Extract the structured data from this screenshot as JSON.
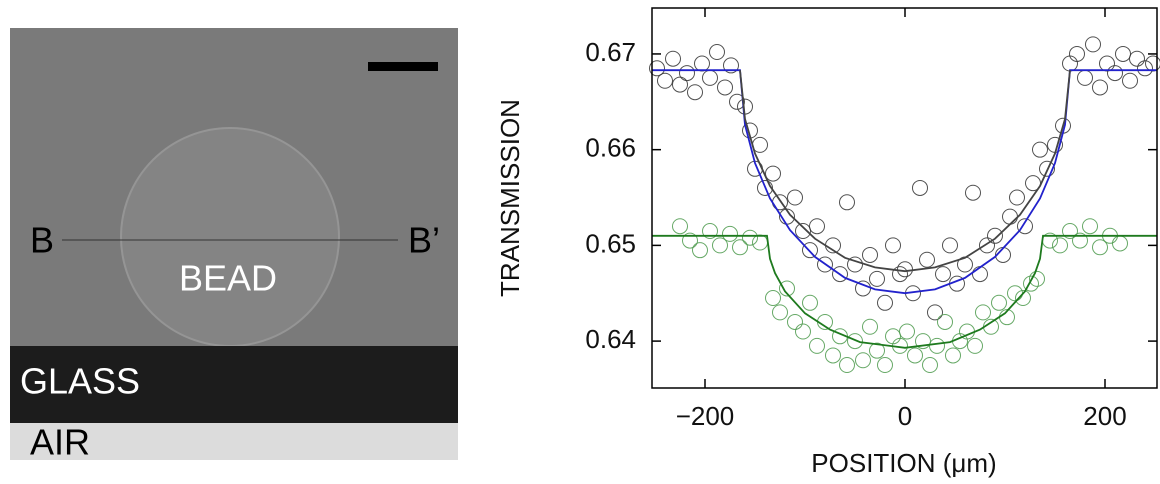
{
  "micrograph": {
    "left_marker": "B",
    "right_marker": "B’",
    "bead": "BEAD",
    "glass": "GLASS",
    "air": "AIR"
  },
  "chart_data": {
    "type": "scatter",
    "xlabel": "POSITION (μm)",
    "ylabel": "TRANSMISSION",
    "xlim": [
      -253,
      252
    ],
    "ylim": [
      0.6351,
      0.6748
    ],
    "xticks": [
      {
        "value": -200,
        "label": "−200"
      },
      0,
      200
    ],
    "yticks": [
      0.64,
      0.65,
      0.66,
      0.67
    ],
    "series": [
      {
        "type": "scatter",
        "color": "#333333",
        "x": [
          -248,
          -240,
          -232,
          -225,
          -218,
          -210,
          -203,
          -195,
          -188,
          -180,
          -174,
          -168,
          -160,
          -155,
          -150,
          -145,
          -140,
          -132,
          -125,
          -118,
          -110,
          -102,
          -95,
          -88,
          -80,
          -72,
          -65,
          -58,
          -50,
          -42,
          -35,
          -28,
          -20,
          -12,
          -5,
          0,
          8,
          15,
          22,
          30,
          38,
          45,
          52,
          60,
          68,
          75,
          82,
          90,
          98,
          105,
          112,
          120,
          128,
          135,
          142,
          150,
          158,
          165,
          172,
          180,
          188,
          195,
          202,
          210,
          218,
          225,
          232,
          240,
          248
        ],
        "values": [
          0.6685,
          0.6672,
          0.6695,
          0.6668,
          0.668,
          0.666,
          0.669,
          0.6675,
          0.6702,
          0.6665,
          0.6688,
          0.665,
          0.6645,
          0.662,
          0.658,
          0.6605,
          0.656,
          0.6575,
          0.6545,
          0.653,
          0.655,
          0.6515,
          0.6495,
          0.652,
          0.648,
          0.65,
          0.647,
          0.6545,
          0.648,
          0.6455,
          0.649,
          0.6465,
          0.644,
          0.65,
          0.647,
          0.6475,
          0.645,
          0.656,
          0.6485,
          0.643,
          0.647,
          0.65,
          0.646,
          0.648,
          0.6555,
          0.647,
          0.65,
          0.651,
          0.649,
          0.653,
          0.655,
          0.652,
          0.6565,
          0.66,
          0.658,
          0.6605,
          0.6625,
          0.669,
          0.67,
          0.6675,
          0.671,
          0.6665,
          0.669,
          0.668,
          0.67,
          0.6672,
          0.6695,
          0.6685,
          0.669
        ]
      },
      {
        "type": "scatter",
        "color": "#4c9a4c",
        "x": [
          -225,
          -215,
          -205,
          -195,
          -185,
          -175,
          -165,
          -155,
          -145,
          -132,
          -125,
          -118,
          -110,
          -102,
          -95,
          -88,
          -80,
          -72,
          -65,
          -58,
          -50,
          -42,
          -35,
          -28,
          -20,
          -12,
          -5,
          2,
          10,
          18,
          25,
          32,
          40,
          48,
          55,
          62,
          70,
          78,
          86,
          94,
          102,
          110,
          118,
          126,
          132,
          145,
          155,
          165,
          175,
          185,
          195,
          205,
          215
        ],
        "values": [
          0.652,
          0.6505,
          0.6495,
          0.6515,
          0.65,
          0.6512,
          0.6498,
          0.6508,
          0.6503,
          0.6445,
          0.643,
          0.6455,
          0.642,
          0.641,
          0.644,
          0.6395,
          0.642,
          0.6385,
          0.6405,
          0.6375,
          0.64,
          0.638,
          0.6415,
          0.639,
          0.6375,
          0.6405,
          0.6395,
          0.641,
          0.6385,
          0.64,
          0.6375,
          0.6395,
          0.642,
          0.6385,
          0.64,
          0.641,
          0.6395,
          0.643,
          0.6415,
          0.644,
          0.6425,
          0.645,
          0.6445,
          0.646,
          0.6465,
          0.6505,
          0.65,
          0.6515,
          0.6505,
          0.652,
          0.6498,
          0.651,
          0.6502
        ]
      },
      {
        "type": "line",
        "color": "#2222cc",
        "x": [
          -253,
          -165,
          -160,
          -150,
          -135,
          -115,
          -90,
          -60,
          -30,
          0,
          30,
          60,
          90,
          115,
          135,
          150,
          160,
          165,
          252
        ],
        "values": [
          0.6683,
          0.6683,
          0.6626,
          0.6586,
          0.6549,
          0.6516,
          0.6488,
          0.6466,
          0.6454,
          0.645,
          0.6454,
          0.6466,
          0.6488,
          0.6516,
          0.6549,
          0.6586,
          0.6626,
          0.6683,
          0.6683
        ]
      },
      {
        "type": "line",
        "color": "#444444",
        "x": [
          -165,
          -160,
          -150,
          -135,
          -115,
          -90,
          -60,
          -30,
          0,
          30,
          60,
          90,
          115,
          135,
          150,
          160,
          165
        ],
        "values": [
          0.6683,
          0.6632,
          0.6596,
          0.6562,
          0.6532,
          0.6507,
          0.6487,
          0.6477,
          0.6473,
          0.6477,
          0.6487,
          0.6507,
          0.6532,
          0.6562,
          0.6596,
          0.6632,
          0.6683
        ]
      },
      {
        "type": "line",
        "color": "#1e7a1e",
        "x": [
          -253,
          -138,
          -135,
          -130,
          -120,
          -100,
          -75,
          -45,
          0,
          45,
          75,
          100,
          120,
          130,
          135,
          138,
          252
        ],
        "values": [
          0.651,
          0.651,
          0.6486,
          0.6471,
          0.6452,
          0.6429,
          0.6412,
          0.6399,
          0.6393,
          0.6399,
          0.6412,
          0.6429,
          0.6452,
          0.6471,
          0.6486,
          0.651,
          0.651
        ]
      }
    ]
  }
}
